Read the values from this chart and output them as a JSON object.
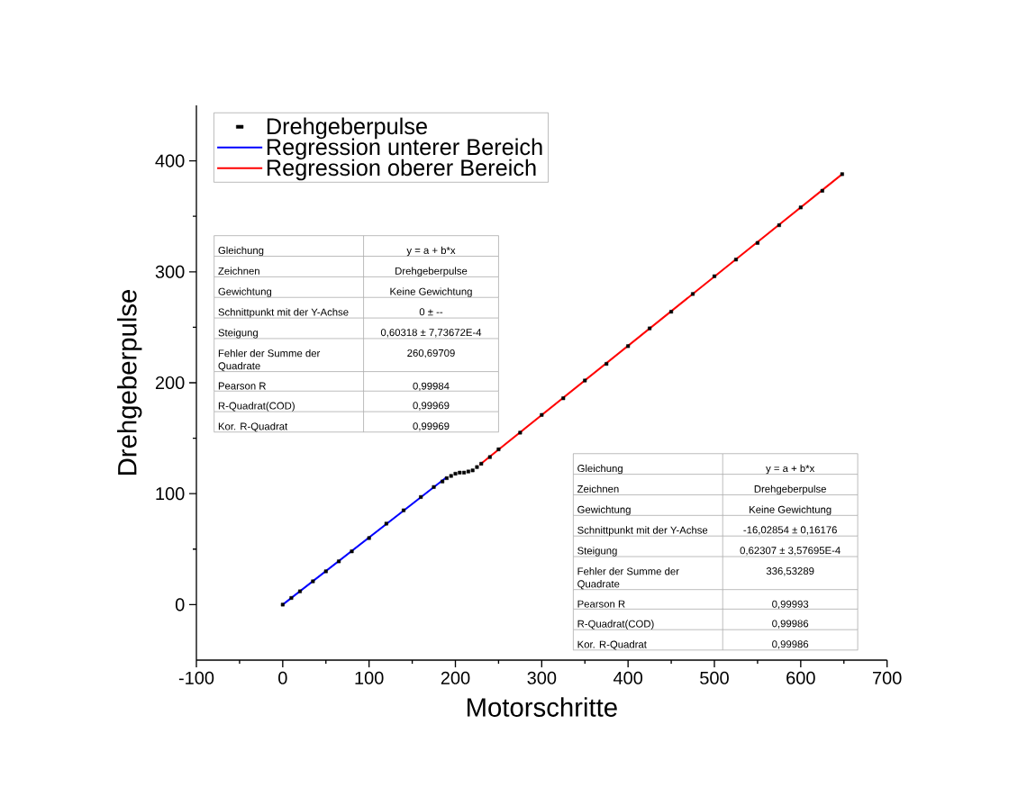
{
  "chart_data": {
    "type": "scatter",
    "xlabel": "Motorschritte",
    "ylabel": "Drehgeberpulse",
    "xlim": [
      -100,
      700
    ],
    "ylim": [
      -50,
      450
    ],
    "xticks": [
      -100,
      0,
      100,
      200,
      300,
      400,
      500,
      600,
      700
    ],
    "yticks": [
      0,
      100,
      200,
      300,
      400
    ],
    "legend": "top left",
    "series": [
      {
        "name": "Drehgeberpulse",
        "marker": "square",
        "color": "#000000",
        "x": [
          0,
          10,
          20,
          35,
          50,
          65,
          80,
          100,
          120,
          140,
          160,
          175,
          185,
          190,
          195,
          200,
          205,
          210,
          215,
          220,
          225,
          230,
          240,
          250,
          275,
          300,
          325,
          350,
          375,
          400,
          425,
          450,
          475,
          500,
          525,
          550,
          575,
          600,
          625,
          648
        ],
        "values": [
          0,
          6,
          12,
          21,
          30,
          39,
          48,
          60,
          73,
          85,
          97,
          106,
          111,
          114,
          116,
          118,
          119,
          119,
          120,
          121,
          124,
          127,
          133,
          140,
          155,
          171,
          186,
          202,
          217,
          233,
          249,
          264,
          280,
          296,
          311,
          326,
          342,
          358,
          373,
          388
        ]
      },
      {
        "name": "Regression unterer Bereich",
        "type": "line",
        "color": "#0000ff",
        "x": [
          0,
          190
        ],
        "values": [
          0,
          115
        ]
      },
      {
        "name": "Regression oberer Bereich",
        "type": "line",
        "color": "#ff0000",
        "x": [
          228,
          648
        ],
        "values": [
          126,
          388
        ]
      }
    ],
    "annotations": [
      "Gleichung",
      "y = a + b*x",
      "Zeichnen",
      "Drehgeberpulse",
      "Gewichtung",
      "Keine Gewichtung",
      "Schnittpunkt mit der Y-Achse",
      "0 ± --",
      "Steigung",
      "0,60318 ± 7,73672E-4",
      "Fehler der Summe der Quadrate",
      "260,69709",
      "Pearson R",
      "0,99984",
      "R-Quadrat(COD)",
      "0,99969",
      "Kor. R-Quadrat",
      "0,99969",
      "Gleichung",
      "y = a + b*x",
      "Zeichnen",
      "Drehgeberpulse",
      "Gewichtung",
      "Keine Gewichtung",
      "Schnittpunkt mit der Y-Achse",
      "-16,02854 ± 0,16176",
      "Steigung",
      "0,62307 ± 3,57695E-4",
      "Fehler der Summe der Quadrate",
      "336,53289",
      "Pearson R",
      "0,99993",
      "R-Quadrat(COD)",
      "0,99986",
      "Kor. R-Quadrat",
      "0,99986"
    ]
  }
}
